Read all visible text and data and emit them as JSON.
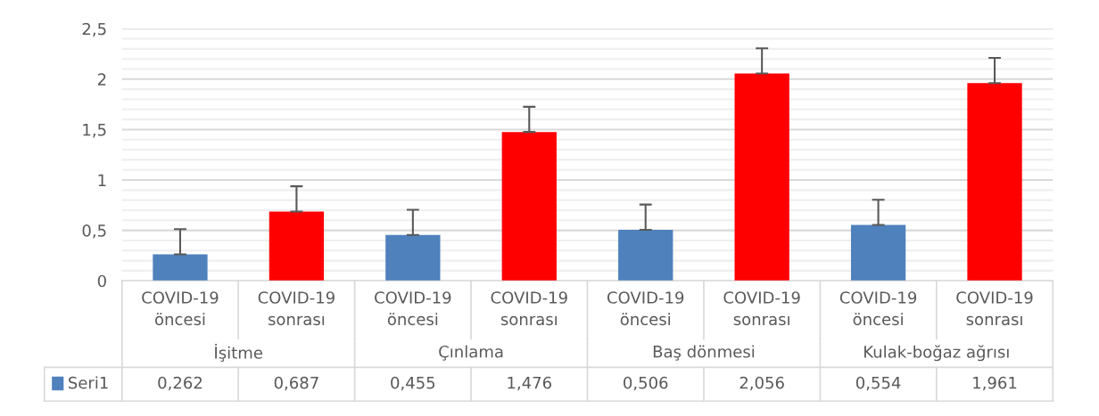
{
  "chart_data": {
    "type": "bar",
    "categories": [
      "COVID-19\nöncesi",
      "COVID-19\nsonrası",
      "COVID-19\nöncesi",
      "COVID-19\nsonrası",
      "COVID-19\nöncesi",
      "COVID-19\nsonrası",
      "COVID-19\nöncesi",
      "COVID-19\nsonrası"
    ],
    "series": [
      {
        "name": "Seri1",
        "color": "#4f81bd",
        "colors": [
          "#4f81bd",
          "#ff0000",
          "#4f81bd",
          "#ff0000",
          "#4f81bd",
          "#ff0000",
          "#4f81bd",
          "#ff0000"
        ],
        "values": [
          0.262,
          0.687,
          0.455,
          1.476,
          0.506,
          2.056,
          0.554,
          1.961
        ],
        "errors": [
          [
            0.262,
            0.512
          ],
          [
            0.687,
            0.937
          ],
          [
            0.455,
            0.705
          ],
          [
            1.476,
            1.726
          ],
          [
            0.506,
            0.756
          ],
          [
            2.056,
            2.306
          ],
          [
            0.554,
            0.804
          ],
          [
            1.961,
            2.211
          ]
        ],
        "value_labels": [
          "0,262",
          "0,687",
          "0,455",
          "1,476",
          "0,506",
          "2,056",
          "0,554",
          "1,961"
        ]
      }
    ],
    "annotations": [
      "İşitme",
      "Çınlama",
      "Baş dönmesi",
      "Kulak-boğaz ağrısı"
    ],
    "ylim": [
      0,
      2.5
    ],
    "yticks": [
      0,
      {
        "value": 0.1,
        "label": null
      },
      {
        "value": 0.2,
        "label": null
      },
      {
        "value": 0.3,
        "label": null
      },
      {
        "value": 0.4,
        "label": null
      },
      {
        "value": 0.5,
        "label": "0,5"
      },
      {
        "value": 0.6,
        "label": null
      },
      {
        "value": 0.7,
        "label": null
      },
      {
        "value": 0.8,
        "label": null
      },
      {
        "value": 0.9,
        "label": null
      },
      1,
      {
        "value": 1.1,
        "label": null
      },
      {
        "value": 1.2,
        "label": null
      },
      {
        "value": 1.3,
        "label": null
      },
      {
        "value": 1.4,
        "label": null
      },
      {
        "value": 1.5,
        "label": "1,5"
      },
      {
        "value": 1.6,
        "label": null
      },
      {
        "value": 1.7,
        "label": null
      },
      {
        "value": 1.8,
        "label": null
      },
      {
        "value": 1.9,
        "label": null
      },
      2,
      {
        "value": 2.1,
        "label": null
      },
      {
        "value": 2.2,
        "label": null
      },
      {
        "value": 2.3,
        "label": null
      },
      {
        "value": 2.4,
        "label": null
      },
      {
        "value": 2.5,
        "label": "2,5"
      }
    ],
    "grid": "y"
  }
}
